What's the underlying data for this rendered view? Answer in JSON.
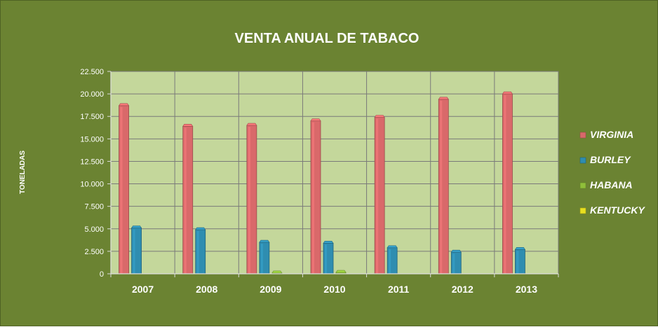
{
  "chart_data": {
    "type": "bar",
    "title": "VENTA ANUAL DE TABACO",
    "xlabel": "",
    "ylabel": "TONELADAS",
    "categories": [
      "2007",
      "2008",
      "2009",
      "2010",
      "2011",
      "2012",
      "2013"
    ],
    "ylim": [
      0,
      22500
    ],
    "yticks": [
      0,
      2500,
      5000,
      7500,
      10000,
      12500,
      15000,
      17500,
      20000,
      22500
    ],
    "ytick_labels": [
      "0",
      "2.500",
      "5.000",
      "7.500",
      "10.000",
      "12.500",
      "15.000",
      "17.500",
      "20.000",
      "22.500"
    ],
    "grid": true,
    "legend": "right",
    "series": [
      {
        "name": "VIRGINIA",
        "color": "#d9696a",
        "values": [
          18700,
          16400,
          16500,
          17000,
          17400,
          19400,
          20000
        ]
      },
      {
        "name": "BURLEY",
        "color": "#2f8db0",
        "values": [
          5100,
          4900,
          3500,
          3400,
          2900,
          2400,
          2700
        ]
      },
      {
        "name": "HABANA",
        "color": "#8fbf3a",
        "values": [
          0,
          0,
          80,
          150,
          0,
          0,
          0
        ]
      },
      {
        "name": "KENTUCKY",
        "color": "#e8e020",
        "values": [
          0,
          0,
          0,
          0,
          0,
          0,
          0
        ]
      }
    ]
  },
  "colors": {
    "background": "#6b8332",
    "plot_area": "#c4d79b",
    "gridline": "#7a7a7a"
  }
}
